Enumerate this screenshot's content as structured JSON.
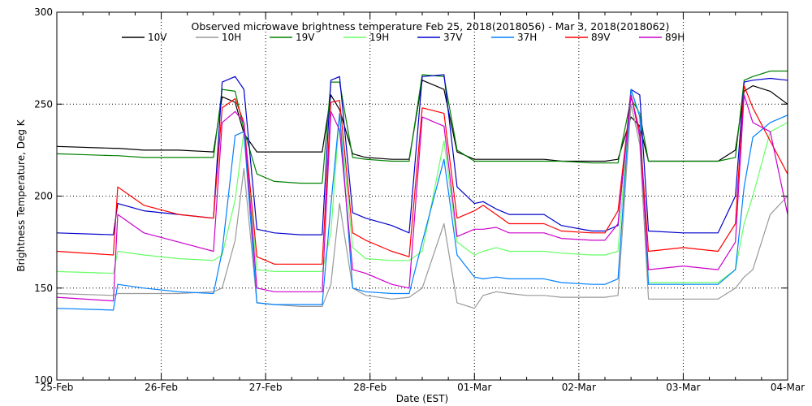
{
  "chart_data": {
    "type": "line",
    "title": "Observed microwave brightness temperature Feb 25, 2018(2018056) - Mar  3, 2018(2018062)",
    "xlabel": "Date (EST)",
    "ylabel": "Brightness Temperature, Deg K",
    "ylim": [
      100,
      300
    ],
    "xlim": [
      "2018-02-25",
      "2018-03-04"
    ],
    "grid": true,
    "legend_position": "top",
    "yticks": [
      100,
      150,
      200,
      250,
      300
    ],
    "xticks": [
      {
        "x": "2018-02-25",
        "label": "25-Feb"
      },
      {
        "x": "2018-02-26",
        "label": "26-Feb"
      },
      {
        "x": "2018-02-27",
        "label": "27-Feb"
      },
      {
        "x": "2018-02-28",
        "label": "28-Feb"
      },
      {
        "x": "2018-03-01",
        "label": "01-Mar"
      },
      {
        "x": "2018-03-02",
        "label": "02-Mar"
      },
      {
        "x": "2018-03-03",
        "label": "03-Mar"
      },
      {
        "x": "2018-03-04",
        "label": "04-Mar"
      }
    ],
    "x": [
      "2018-02-25 00:00",
      "2018-02-25 13:00",
      "2018-02-25 14:00",
      "2018-02-25 20:00",
      "2018-02-26 04:00",
      "2018-02-26 12:00",
      "2018-02-26 14:00",
      "2018-02-26 17:00",
      "2018-02-26 19:00",
      "2018-02-26 22:00",
      "2018-02-27 02:00",
      "2018-02-27 08:00",
      "2018-02-27 13:00",
      "2018-02-27 15:00",
      "2018-02-27 17:00",
      "2018-02-27 20:00",
      "2018-02-27 23:00",
      "2018-02-28 05:00",
      "2018-02-28 09:00",
      "2018-02-28 12:00",
      "2018-02-28 17:00",
      "2018-02-28 20:00",
      "2018-03-01 00:00",
      "2018-03-01 02:00",
      "2018-03-01 05:00",
      "2018-03-01 08:00",
      "2018-03-01 12:00",
      "2018-03-01 16:00",
      "2018-03-01 20:00",
      "2018-03-02 03:00",
      "2018-03-02 06:00",
      "2018-03-02 09:00",
      "2018-03-02 12:00",
      "2018-03-02 14:00",
      "2018-03-02 16:00",
      "2018-03-03 00:00",
      "2018-03-03 08:00",
      "2018-03-03 12:00",
      "2018-03-03 14:00",
      "2018-03-03 16:00",
      "2018-03-03 20:00",
      "2018-03-04 00:00"
    ],
    "series": [
      {
        "name": "10V",
        "color": "#000000",
        "values": [
          227,
          226,
          226,
          225,
          225,
          224,
          254,
          251,
          234,
          224,
          224,
          224,
          224,
          255,
          247,
          223,
          221,
          220,
          220,
          263,
          258,
          224,
          220,
          220,
          220,
          220,
          220,
          220,
          219,
          219,
          219,
          220,
          243,
          238,
          219,
          219,
          219,
          225,
          257,
          260,
          257,
          250
        ]
      },
      {
        "name": "10H",
        "color": "#999999",
        "values": [
          147,
          146,
          147,
          147,
          147,
          148,
          150,
          176,
          215,
          142,
          141,
          140,
          140,
          152,
          196,
          150,
          146,
          144,
          145,
          150,
          185,
          142,
          139,
          146,
          148,
          147,
          146,
          146,
          145,
          145,
          145,
          146,
          250,
          228,
          144,
          144,
          144,
          150,
          156,
          160,
          190,
          200
        ]
      },
      {
        "name": "19V",
        "color": "#008000",
        "values": [
          223,
          222,
          222,
          221,
          221,
          221,
          258,
          257,
          236,
          212,
          208,
          207,
          207,
          262,
          262,
          221,
          220,
          219,
          219,
          266,
          265,
          225,
          219,
          219,
          219,
          219,
          219,
          219,
          219,
          218,
          218,
          218,
          253,
          245,
          219,
          219,
          219,
          221,
          263,
          265,
          268,
          268
        ]
      },
      {
        "name": "19H",
        "color": "#66FF66",
        "values": [
          159,
          158,
          170,
          168,
          166,
          165,
          168,
          198,
          235,
          160,
          159,
          159,
          159,
          180,
          245,
          172,
          166,
          165,
          165,
          170,
          230,
          175,
          168,
          170,
          172,
          170,
          170,
          170,
          169,
          168,
          168,
          170,
          258,
          244,
          153,
          153,
          153,
          160,
          185,
          200,
          235,
          240
        ]
      },
      {
        "name": "37V",
        "color": "#0000CC",
        "values": [
          180,
          179,
          196,
          192,
          190,
          188,
          262,
          265,
          258,
          182,
          180,
          179,
          179,
          263,
          265,
          191,
          188,
          184,
          180,
          265,
          266,
          205,
          196,
          197,
          193,
          190,
          190,
          190,
          184,
          181,
          181,
          184,
          258,
          255,
          181,
          180,
          180,
          200,
          262,
          263,
          264,
          263
        ]
      },
      {
        "name": "37H",
        "color": "#0080FF",
        "values": [
          139,
          138,
          152,
          150,
          148,
          147,
          170,
          233,
          235,
          142,
          141,
          141,
          141,
          195,
          245,
          150,
          148,
          147,
          147,
          175,
          220,
          168,
          156,
          155,
          156,
          155,
          155,
          155,
          153,
          152,
          152,
          155,
          258,
          243,
          152,
          152,
          152,
          160,
          205,
          232,
          240,
          244
        ]
      },
      {
        "name": "89V",
        "color": "#FF0000",
        "values": [
          170,
          168,
          205,
          195,
          190,
          188,
          248,
          253,
          240,
          167,
          163,
          163,
          163,
          251,
          252,
          180,
          176,
          170,
          167,
          248,
          245,
          188,
          192,
          195,
          190,
          185,
          185,
          185,
          181,
          180,
          180,
          192,
          255,
          235,
          170,
          172,
          170,
          185,
          260,
          248,
          230,
          212
        ]
      },
      {
        "name": "89H",
        "color": "#CC00CC",
        "values": [
          145,
          143,
          190,
          180,
          175,
          170,
          240,
          246,
          240,
          150,
          148,
          148,
          148,
          246,
          236,
          160,
          158,
          152,
          150,
          243,
          238,
          178,
          182,
          182,
          183,
          180,
          180,
          180,
          177,
          176,
          176,
          185,
          255,
          232,
          160,
          162,
          160,
          175,
          255,
          240,
          235,
          190
        ]
      }
    ]
  }
}
